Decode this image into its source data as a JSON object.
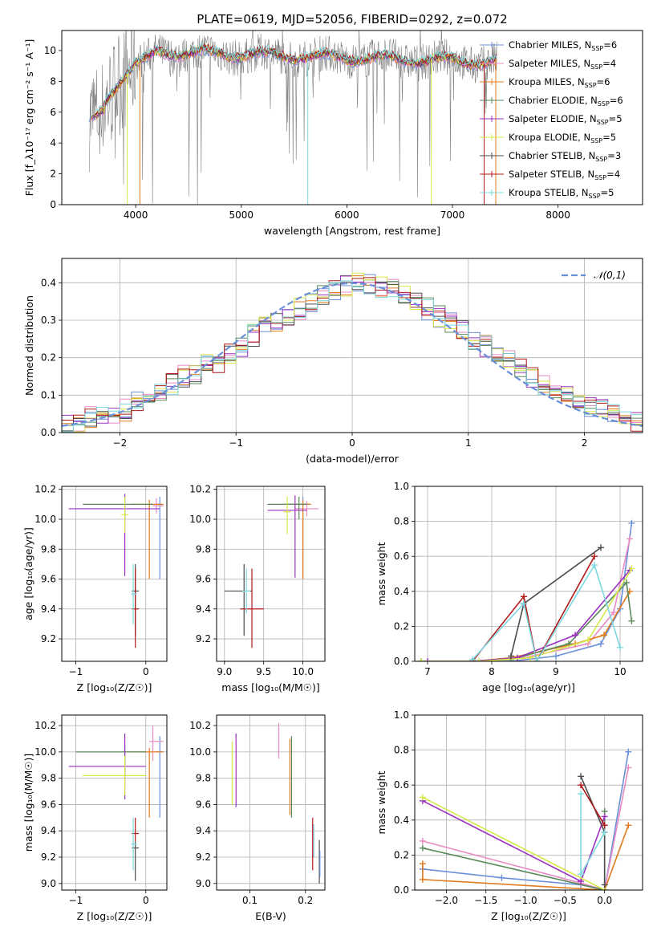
{
  "chart_data": [
    {
      "type": "line",
      "title": "PLATE=0619, MJD=52056, FIBERID=0292, z=0.072",
      "xlabel": "wavelength [Angstrom, rest frame]",
      "ylabel": "Flux [f_λ10⁻¹⁷ erg cm⁻² s⁻¹ A⁻¹]",
      "xlim": [
        3300,
        8800
      ],
      "ylim": [
        0,
        11.3
      ],
      "xticks": [
        4000,
        5000,
        6000,
        7000,
        8000
      ],
      "yticks": [
        0,
        2,
        4,
        6,
        8,
        10
      ],
      "grid": false,
      "legend_position": "top-right",
      "data_series": {
        "name": "data",
        "color": "#808080",
        "x_range": [
          3560,
          7420
        ],
        "level_approx": 9.6
      },
      "legend": [
        {
          "imf": "Chabrier",
          "lib": "MILES",
          "n": "6",
          "color": "#6a8fd9"
        },
        {
          "imf": "Salpeter",
          "lib": "MILES",
          "n": "4",
          "color": "#e88bc4"
        },
        {
          "imf": "Kroupa",
          "lib": "MILES",
          "n": "6",
          "color": "#e07b20"
        },
        {
          "imf": "Chabrier",
          "lib": "ELODIE",
          "n": "6",
          "color": "#5a8a5a"
        },
        {
          "imf": "Salpeter",
          "lib": "ELODIE",
          "n": "5",
          "color": "#9b30c0"
        },
        {
          "imf": "Kroupa",
          "lib": "ELODIE",
          "n": "5",
          "color": "#d6e84a"
        },
        {
          "imf": "Chabrier",
          "lib": "STELIB",
          "n": "3",
          "color": "#4d4d4d"
        },
        {
          "imf": "Salpeter",
          "lib": "STELIB",
          "n": "4",
          "color": "#b01818"
        },
        {
          "imf": "Kroupa",
          "lib": "STELIB",
          "n": "5",
          "color": "#7dd8e0"
        }
      ]
    },
    {
      "type": "bar",
      "xlabel": "(data-model)/error",
      "ylabel": "Normed distribution",
      "xlim": [
        -2.5,
        2.5
      ],
      "ylim": [
        0,
        0.465
      ],
      "xticks": [
        -2,
        -1,
        0,
        1,
        2
      ],
      "yticks": [
        0.0,
        0.1,
        0.2,
        0.3,
        0.4
      ],
      "grid": true,
      "legend_position": "top-right",
      "reference": {
        "label": "𝒩(0,1)",
        "color": "#6a8fd9",
        "style": "dashed"
      },
      "bin_edges": [
        -2.5,
        -2.4,
        -2.3,
        -2.2,
        -2.1,
        -2.0,
        -1.9,
        -1.8,
        -1.7,
        -1.6,
        -1.5,
        -1.4,
        -1.3,
        -1.2,
        -1.1,
        -1.0,
        -0.9,
        -0.8,
        -0.7,
        -0.6,
        -0.5,
        -0.4,
        -0.3,
        -0.2,
        -0.1,
        0.0,
        0.1,
        0.2,
        0.3,
        0.4,
        0.5,
        0.6,
        0.7,
        0.8,
        0.9,
        1.0,
        1.1,
        1.2,
        1.3,
        1.4,
        1.5,
        1.6,
        1.7,
        1.8,
        1.9,
        2.0,
        2.1,
        2.2,
        2.3,
        2.4,
        2.5
      ],
      "series_base": [
        0.02,
        0.03,
        0.04,
        0.05,
        0.05,
        0.06,
        0.08,
        0.09,
        0.11,
        0.13,
        0.15,
        0.16,
        0.18,
        0.19,
        0.21,
        0.23,
        0.26,
        0.28,
        0.3,
        0.31,
        0.33,
        0.35,
        0.37,
        0.38,
        0.39,
        0.4,
        0.4,
        0.39,
        0.38,
        0.37,
        0.35,
        0.33,
        0.31,
        0.29,
        0.27,
        0.25,
        0.23,
        0.21,
        0.19,
        0.17,
        0.15,
        0.13,
        0.11,
        0.1,
        0.08,
        0.07,
        0.06,
        0.05,
        0.04,
        0.03
      ],
      "series_colors": [
        "#6a8fd9",
        "#e88bc4",
        "#e07b20",
        "#5a8a5a",
        "#9b30c0",
        "#d6e84a",
        "#4d4d4d",
        "#b01818",
        "#7dd8e0"
      ]
    },
    {
      "type": "scatter",
      "xlabel": "Z [log₁₀(Z/Z☉)]",
      "ylabel": "age  [log₁₀(age/yr)]",
      "xlim": [
        -1.2,
        0.3
      ],
      "ylim": [
        9.05,
        10.22
      ],
      "xticks": [
        -1,
        0
      ],
      "yticks": [
        9.2,
        9.4,
        9.6,
        9.8,
        10.0,
        10.2
      ],
      "grid": true,
      "points": [
        {
          "x": 0.2,
          "y": 10.1,
          "xerr": [
            0.05,
            0.05
          ],
          "yerr": [
            0.5,
            0.05
          ],
          "color": "#6a8fd9"
        },
        {
          "x": 0.15,
          "y": 10.09,
          "xerr": [
            0.05,
            0.1
          ],
          "yerr": [
            0.05,
            0.05
          ],
          "color": "#e88bc4"
        },
        {
          "x": 0.05,
          "y": 10.1,
          "xerr": [
            0.25,
            0.2
          ],
          "yerr": [
            0.5,
            0.03
          ],
          "color": "#e07b20"
        },
        {
          "x": -0.3,
          "y": 10.1,
          "xerr": [
            0.6,
            0.4
          ],
          "yerr": [
            0.1,
            0.05
          ],
          "color": "#5a8a5a"
        },
        {
          "x": -0.3,
          "y": 10.07,
          "xerr": [
            0.8,
            0.5
          ],
          "yerr": [
            0.45,
            0.1
          ],
          "color": "#9b30c0"
        },
        {
          "x": -0.3,
          "y": 10.03,
          "xerr": [
            0.05,
            0.05
          ],
          "yerr": [
            0.12,
            0.12
          ],
          "color": "#d6e84a"
        },
        {
          "x": -0.15,
          "y": 9.52,
          "xerr": [
            0.05,
            0.05
          ],
          "yerr": [
            0.3,
            0.18
          ],
          "color": "#4d4d4d"
        },
        {
          "x": -0.15,
          "y": 9.4,
          "xerr": [
            0.05,
            0.05
          ],
          "yerr": [
            0.26,
            0.27
          ],
          "color": "#b01818"
        },
        {
          "x": -0.18,
          "y": 9.5,
          "xerr": [
            0.03,
            0.05
          ],
          "yerr": [
            0.2,
            0.2
          ],
          "color": "#7dd8e0"
        }
      ]
    },
    {
      "type": "scatter",
      "xlabel": "mass [log₁₀(M/M☉)]",
      "ylabel": "",
      "xlim": [
        8.9,
        10.28
      ],
      "ylim": [
        9.05,
        10.22
      ],
      "xticks": [
        9.0,
        9.5,
        10.0
      ],
      "yticks": [
        9.2,
        9.4,
        9.6,
        9.8,
        10.0,
        10.2
      ],
      "grid": true,
      "points": [
        {
          "x": 10.0,
          "y": 10.1,
          "xerr": [
            0.2,
            0.1
          ],
          "yerr": [
            0.5,
            0.05
          ],
          "color": "#6a8fd9"
        },
        {
          "x": 10.05,
          "y": 10.07,
          "xerr": [
            0.15,
            0.15
          ],
          "yerr": [
            0.05,
            0.05
          ],
          "color": "#e88bc4"
        },
        {
          "x": 10.0,
          "y": 10.1,
          "xerr": [
            0.25,
            0.1
          ],
          "yerr": [
            0.5,
            0.03
          ],
          "color": "#e07b20"
        },
        {
          "x": 9.95,
          "y": 10.1,
          "xerr": [
            0.4,
            0.1
          ],
          "yerr": [
            0.1,
            0.05
          ],
          "color": "#5a8a5a"
        },
        {
          "x": 9.9,
          "y": 10.06,
          "xerr": [
            0.35,
            0.15
          ],
          "yerr": [
            0.45,
            0.1
          ],
          "color": "#9b30c0"
        },
        {
          "x": 9.8,
          "y": 10.05,
          "xerr": [
            0.05,
            0.05
          ],
          "yerr": [
            0.15,
            0.1
          ],
          "color": "#d6e84a"
        },
        {
          "x": 9.25,
          "y": 9.52,
          "xerr": [
            0.25,
            0.1
          ],
          "yerr": [
            0.3,
            0.18
          ],
          "color": "#4d4d4d"
        },
        {
          "x": 9.35,
          "y": 9.4,
          "xerr": [
            0.15,
            0.15
          ],
          "yerr": [
            0.26,
            0.27
          ],
          "color": "#b01818"
        },
        {
          "x": 9.28,
          "y": 9.52,
          "xerr": [
            0.05,
            0.05
          ],
          "yerr": [
            0.15,
            0.15
          ],
          "color": "#7dd8e0"
        }
      ]
    },
    {
      "type": "line",
      "xlabel": "age  [log₁₀(age/yr)]",
      "ylabel": "mass weight",
      "xlim": [
        6.8,
        10.35
      ],
      "ylim": [
        0,
        1
      ],
      "xticks": [
        7,
        8,
        9,
        10
      ],
      "yticks": [
        0.0,
        0.2,
        0.4,
        0.6,
        0.8,
        1.0
      ],
      "grid": true,
      "series": [
        {
          "color": "#6a8fd9",
          "x": [
            7.7,
            8.3,
            9.0,
            9.7,
            10.0,
            10.18
          ],
          "y": [
            0.0,
            0.0,
            0.03,
            0.1,
            0.3,
            0.79
          ]
        },
        {
          "color": "#e88bc4",
          "x": [
            7.7,
            8.5,
            9.5,
            9.9,
            10.15
          ],
          "y": [
            0.0,
            0.02,
            0.1,
            0.28,
            0.7
          ]
        },
        {
          "color": "#e07b20",
          "x": [
            6.9,
            7.7,
            8.3,
            8.8,
            9.3,
            9.75,
            10.15
          ],
          "y": [
            0.0,
            0.0,
            0.02,
            0.06,
            0.1,
            0.15,
            0.4
          ]
        },
        {
          "color": "#5a8a5a",
          "x": [
            6.9,
            7.7,
            8.3,
            9.2,
            10.1,
            10.18
          ],
          "y": [
            0.0,
            0.0,
            0.01,
            0.1,
            0.45,
            0.23
          ]
        },
        {
          "color": "#9b30c0",
          "x": [
            7.0,
            7.7,
            8.4,
            9.3,
            10.15
          ],
          "y": [
            0.0,
            0.0,
            0.02,
            0.15,
            0.52
          ]
        },
        {
          "color": "#d6e84a",
          "x": [
            6.9,
            7.8,
            8.6,
            9.5,
            10.18
          ],
          "y": [
            0.0,
            0.0,
            0.02,
            0.12,
            0.53
          ]
        },
        {
          "color": "#4d4d4d",
          "x": [
            8.3,
            8.5,
            9.7
          ],
          "y": [
            0.03,
            0.33,
            0.65
          ]
        },
        {
          "color": "#b01818",
          "x": [
            7.7,
            8.5,
            8.7,
            9.6
          ],
          "y": [
            0.0,
            0.37,
            0.0,
            0.6
          ]
        },
        {
          "color": "#7dd8e0",
          "x": [
            7.7,
            8.5,
            8.7,
            9.6,
            10.0
          ],
          "y": [
            0.01,
            0.33,
            0.0,
            0.55,
            0.08
          ]
        }
      ]
    },
    {
      "type": "scatter",
      "xlabel": "Z [log₁₀(Z/Z☉)]",
      "ylabel": "mass [log₁₀(M/M☉)]",
      "xlim": [
        -1.2,
        0.3
      ],
      "ylim": [
        8.95,
        10.28
      ],
      "xticks": [
        -1,
        0
      ],
      "yticks": [
        9.0,
        9.2,
        9.4,
        9.6,
        9.8,
        10.0,
        10.2
      ],
      "grid": true,
      "points": [
        {
          "x": 0.2,
          "y": 10.0,
          "xerr": [
            0.05,
            0.05
          ],
          "yerr": [
            0.5,
            0.12
          ],
          "color": "#6a8fd9"
        },
        {
          "x": 0.1,
          "y": 10.08,
          "xerr": [
            0.05,
            0.15
          ],
          "yerr": [
            0.15,
            0.12
          ],
          "color": "#e88bc4"
        },
        {
          "x": 0.05,
          "y": 10.0,
          "xerr": [
            0.4,
            0.2
          ],
          "yerr": [
            0.5,
            0.03
          ],
          "color": "#e07b20"
        },
        {
          "x": -0.3,
          "y": 10.0,
          "xerr": [
            0.7,
            0.3
          ],
          "yerr": [
            0.2,
            0.05
          ],
          "color": "#5a8a5a"
        },
        {
          "x": -0.3,
          "y": 9.89,
          "xerr": [
            0.8,
            0.3
          ],
          "yerr": [
            0.25,
            0.25
          ],
          "color": "#9b30c0"
        },
        {
          "x": -0.3,
          "y": 9.82,
          "xerr": [
            0.6,
            0.3
          ],
          "yerr": [
            0.15,
            0.15
          ],
          "color": "#d6e84a"
        },
        {
          "x": -0.15,
          "y": 9.27,
          "xerr": [
            0.05,
            0.05
          ],
          "yerr": [
            0.25,
            0.05
          ],
          "color": "#4d4d4d"
        },
        {
          "x": -0.15,
          "y": 9.38,
          "xerr": [
            0.05,
            0.05
          ],
          "yerr": [
            0.06,
            0.12
          ],
          "color": "#b01818"
        },
        {
          "x": -0.18,
          "y": 9.3,
          "xerr": [
            0.03,
            0.05
          ],
          "yerr": [
            0.2,
            0.2
          ],
          "color": "#7dd8e0"
        }
      ]
    },
    {
      "type": "scatter",
      "xlabel": "E(B-V)",
      "ylabel": "",
      "xlim": [
        0.04,
        0.235
      ],
      "ylim": [
        8.95,
        10.28
      ],
      "xticks": [
        0.1,
        0.2
      ],
      "yticks": [
        9.0,
        9.2,
        9.4,
        9.6,
        9.8,
        10.0,
        10.2
      ],
      "grid": true,
      "vlines": [
        {
          "x": 0.068,
          "y": [
            9.6,
            10.08
          ],
          "color": "#d6e84a"
        },
        {
          "x": 0.075,
          "y": [
            9.58,
            10.14
          ],
          "color": "#9b30c0"
        },
        {
          "x": 0.152,
          "y": [
            9.95,
            10.22
          ],
          "color": "#e88bc4"
        },
        {
          "x": 0.172,
          "y": [
            9.52,
            10.1
          ],
          "color": "#e07b20"
        },
        {
          "x": 0.175,
          "y": [
            9.5,
            10.12
          ],
          "color": "#5a8a5a"
        },
        {
          "x": 0.213,
          "y": [
            9.1,
            9.5
          ],
          "color": "#b01818"
        },
        {
          "x": 0.215,
          "y": [
            9.2,
            9.45
          ],
          "color": "#7dd8e0"
        },
        {
          "x": 0.225,
          "y": [
            9.0,
            9.33
          ],
          "color": "#4d4d4d"
        },
        {
          "x": 0.226,
          "y": [
            9.05,
            9.25
          ],
          "color": "#6a8fd9"
        }
      ]
    },
    {
      "type": "line",
      "xlabel": "Z [log₁₀(Z/Z☉)]",
      "ylabel": "mass weight",
      "xlim": [
        -2.4,
        0.48
      ],
      "ylim": [
        0,
        1
      ],
      "xticks": [
        -2.0,
        -1.5,
        -1.0,
        -0.5,
        0.0
      ],
      "yticks": [
        0.0,
        0.2,
        0.4,
        0.6,
        0.8,
        1.0
      ],
      "grid": true,
      "series": [
        {
          "color": "#6a8fd9",
          "x": [
            -2.3,
            -1.3,
            -0.3,
            0.0,
            0.3
          ],
          "y": [
            0.12,
            0.07,
            0.03,
            0.0,
            0.79
          ]
        },
        {
          "color": "#e88bc4",
          "x": [
            -2.3,
            -0.3,
            0.0,
            0.3
          ],
          "y": [
            0.28,
            0.04,
            0.0,
            0.7
          ]
        },
        {
          "color": "#e07b20",
          "x": [
            -2.3,
            -2.3,
            0.0,
            0.3
          ],
          "y": [
            0.15,
            0.06,
            0.0,
            0.37
          ]
        },
        {
          "color": "#5a8a5a",
          "x": [
            -2.3,
            0.0,
            0.0
          ],
          "y": [
            0.24,
            0.0,
            0.45
          ]
        },
        {
          "color": "#9b30c0",
          "x": [
            -2.3,
            -0.3,
            0.0
          ],
          "y": [
            0.51,
            0.05,
            0.42
          ]
        },
        {
          "color": "#d6e84a",
          "x": [
            -2.3,
            0.0
          ],
          "y": [
            0.53,
            0.0
          ]
        },
        {
          "color": "#4d4d4d",
          "x": [
            -0.3,
            0.0,
            0.0
          ],
          "y": [
            0.65,
            0.33,
            0.03
          ]
        },
        {
          "color": "#b01818",
          "x": [
            -0.3,
            0.0
          ],
          "y": [
            0.6,
            0.37
          ]
        },
        {
          "color": "#7dd8e0",
          "x": [
            -0.3,
            -0.3,
            0.0
          ],
          "y": [
            0.55,
            0.09,
            0.33
          ]
        }
      ]
    }
  ]
}
